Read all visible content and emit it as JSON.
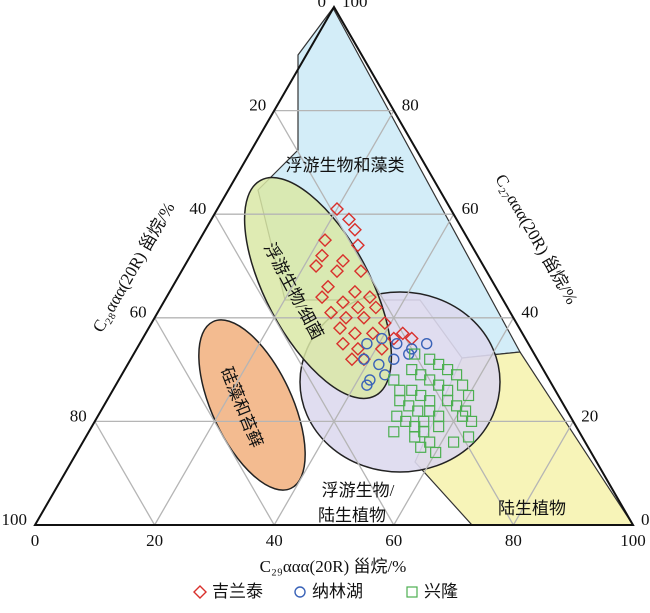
{
  "chart_data": {
    "type": "ternary",
    "axes": {
      "bottom": {
        "label": "C₂₉ααα(20R) 甾烷/%",
        "ticks": [
          0,
          20,
          40,
          60,
          80,
          100
        ]
      },
      "left": {
        "label": "C₂₈ααα(20R) 甾烷/%",
        "ticks": [
          0,
          20,
          40,
          60,
          80,
          100
        ]
      },
      "right": {
        "label": "C₂₇ααα(20R) 甾烷/%",
        "ticks": [
          0,
          20,
          40,
          60,
          80,
          100
        ]
      }
    },
    "regions": [
      "浮游生物和藻类",
      "浮游生物/细菌",
      "硅藻和苔藓",
      "浮游生物/",
      "陆生植物",
      "陆生植物"
    ],
    "series": [
      {
        "name": "吉兰泰",
        "color": "#d9302c",
        "marker": "diamond",
        "c27": [
          61,
          59,
          57,
          55,
          54,
          52,
          51,
          50,
          49,
          49,
          46,
          45,
          44,
          44,
          43,
          42,
          42,
          41,
          40,
          40,
          39,
          38,
          37,
          37,
          36,
          35,
          34,
          34,
          37,
          32,
          32,
          36
        ],
        "c29": [
          20,
          23,
          25,
          21,
          27,
          22,
          26,
          22,
          26,
          30,
          26,
          31,
          34,
          26,
          30,
          33,
          36,
          29,
          32,
          35,
          39,
          32,
          35,
          38,
          42,
          34,
          37,
          41,
          43,
          37,
          39,
          45
        ]
      },
      {
        "name": "纳林湖",
        "color": "#3a63b8",
        "marker": "circle",
        "c27": [
          35,
          36,
          35,
          33,
          35,
          32,
          31,
          32,
          28,
          29,
          27,
          34
        ],
        "c29": [
          38,
          40,
          43,
          46,
          48,
          39,
          42,
          44,
          42,
          44,
          42,
          46
        ]
      },
      {
        "name": "兴隆",
        "color": "#4caf50",
        "marker": "square",
        "c27": [
          33,
          32,
          31,
          30,
          30,
          29,
          29,
          28,
          28,
          27,
          27,
          26,
          26,
          26,
          25,
          25,
          24,
          24,
          24,
          23,
          23,
          22,
          22,
          21,
          21,
          21,
          20,
          20,
          19,
          19,
          18,
          18,
          17,
          16,
          16,
          15,
          14,
          17,
          20,
          22
        ],
        "c29": [
          47,
          50,
          52,
          48,
          54,
          50,
          56,
          46,
          52,
          54,
          58,
          48,
          50,
          56,
          52,
          60,
          49,
          54,
          57,
          51,
          59,
          53,
          55,
          50,
          57,
          61,
          52,
          55,
          54,
          58,
          51,
          56,
          55,
          58,
          62,
          57,
          60,
          64,
          63,
          61
        ]
      }
    ]
  }
}
